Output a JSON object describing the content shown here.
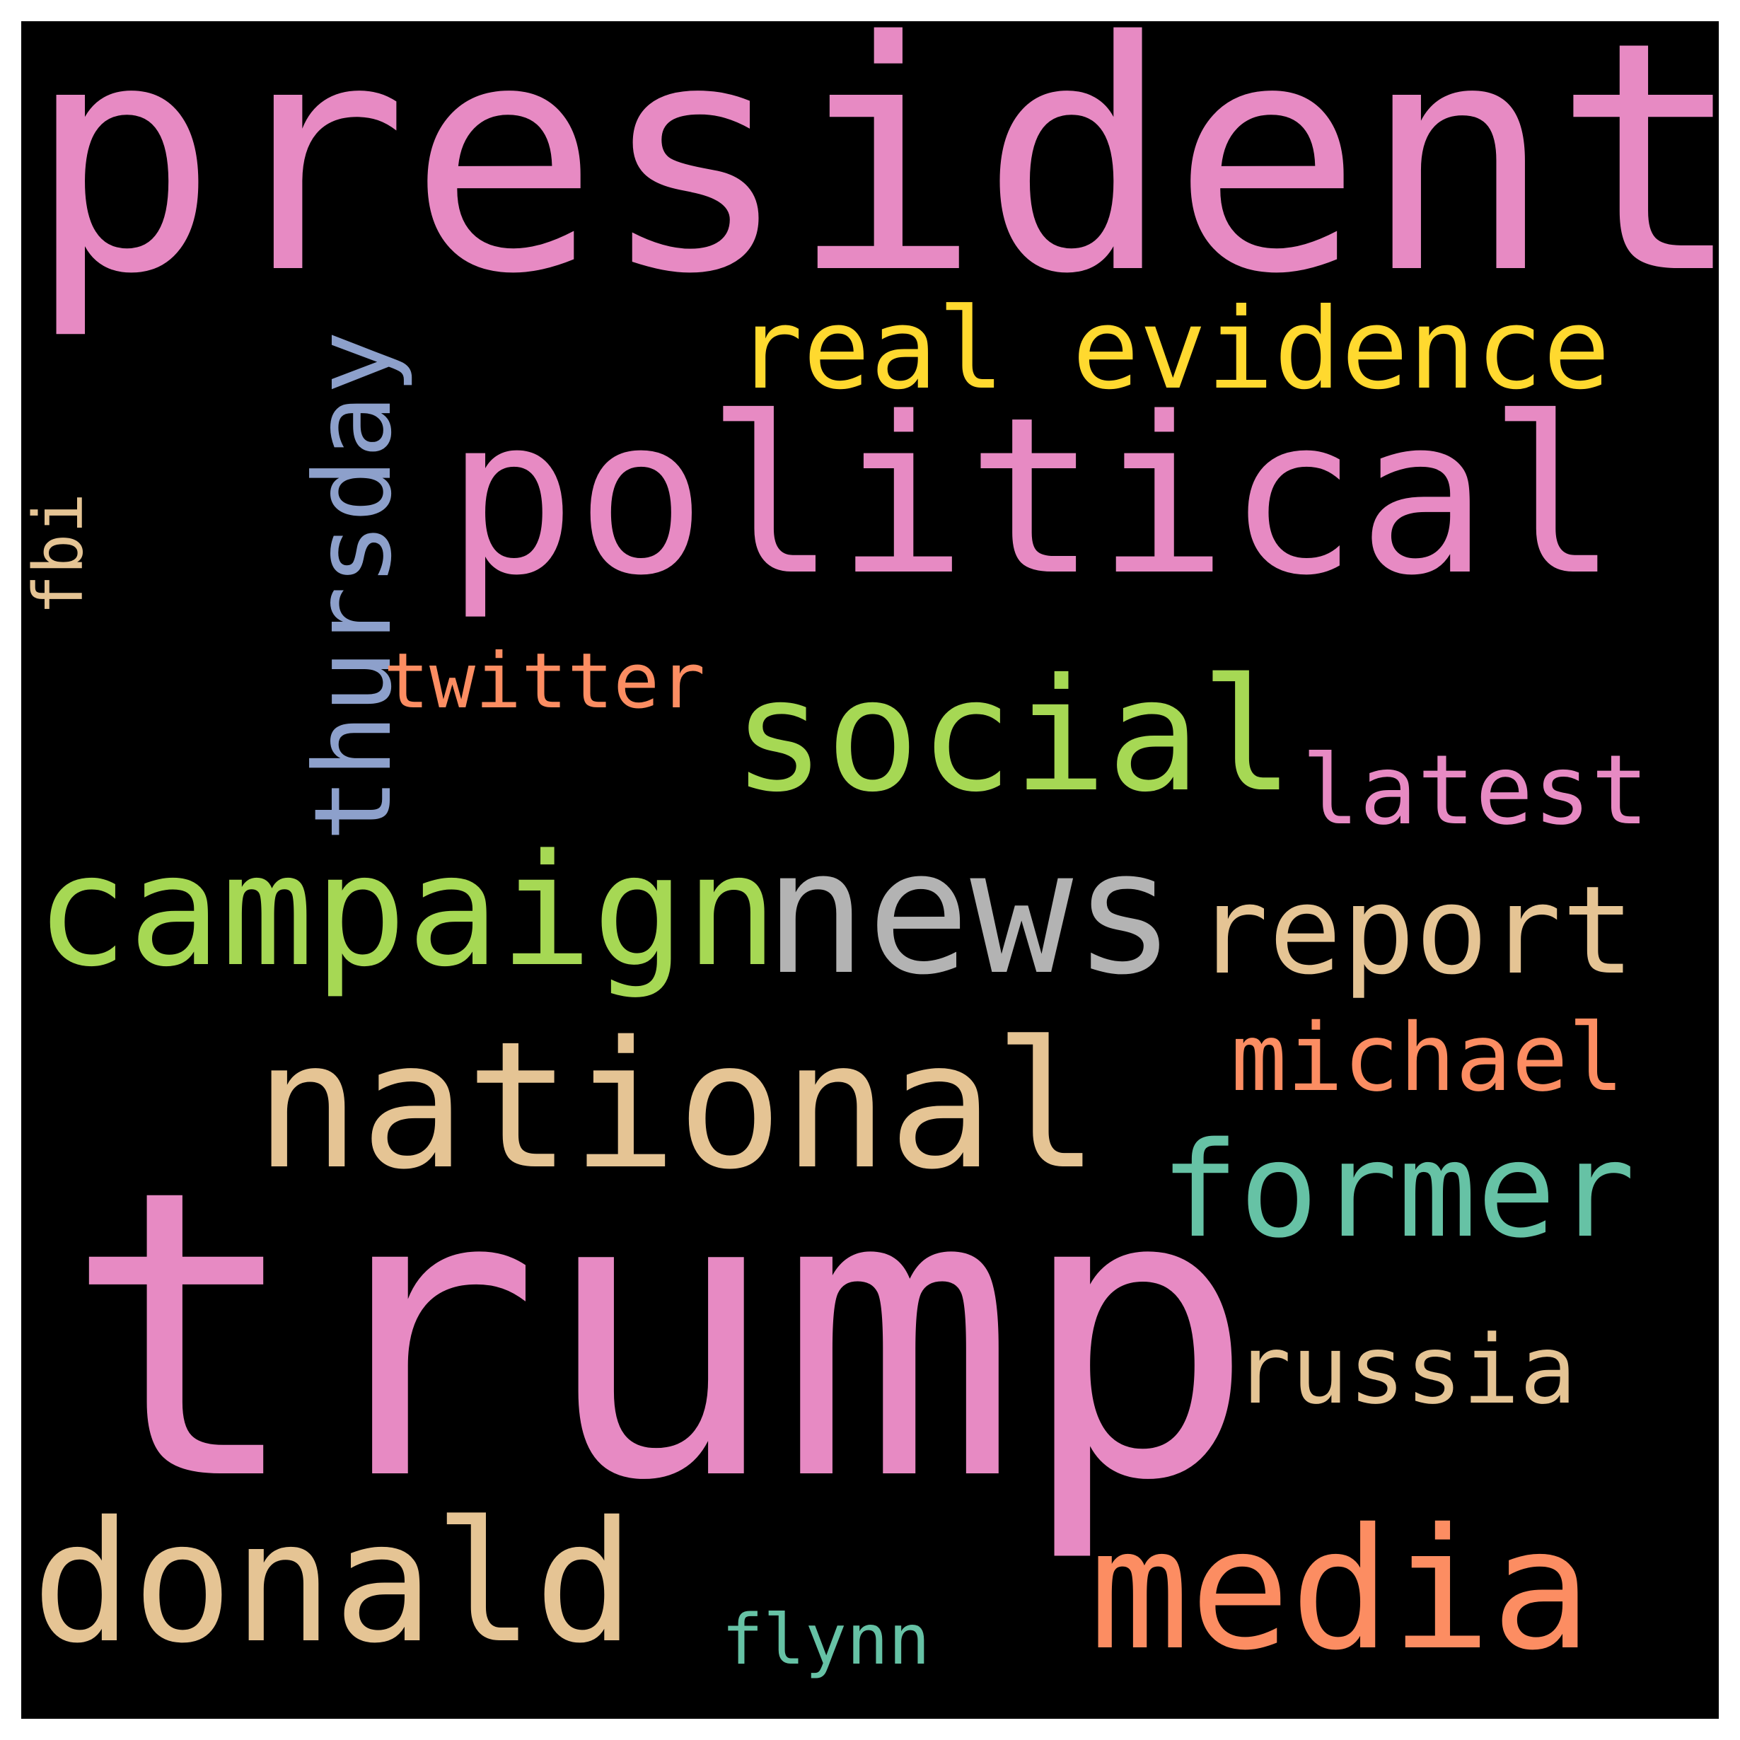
{
  "words": [
    {
      "key": "president",
      "text": "president",
      "color": "#e78ac3"
    },
    {
      "key": "real_evidence",
      "text": "real evidence",
      "color": "#ffd92f"
    },
    {
      "key": "thursday",
      "text": "thursday",
      "color": "#8da0cb"
    },
    {
      "key": "political",
      "text": "political",
      "color": "#e78ac3"
    },
    {
      "key": "fbi",
      "text": "fbi",
      "color": "#e5c494"
    },
    {
      "key": "twitter",
      "text": "twitter",
      "color": "#fc8d62"
    },
    {
      "key": "social",
      "text": "social",
      "color": "#a6d854"
    },
    {
      "key": "latest",
      "text": "latest",
      "color": "#e78ac3"
    },
    {
      "key": "campaign",
      "text": "campaign",
      "color": "#a6d854"
    },
    {
      "key": "news",
      "text": "news",
      "color": "#b3b3b3"
    },
    {
      "key": "report",
      "text": "report",
      "color": "#e5c494"
    },
    {
      "key": "michael",
      "text": "michael",
      "color": "#fc8d62"
    },
    {
      "key": "national",
      "text": "national",
      "color": "#e5c494"
    },
    {
      "key": "former",
      "text": "former",
      "color": "#66c2a5"
    },
    {
      "key": "trump",
      "text": "trump",
      "color": "#e78ac3"
    },
    {
      "key": "russia",
      "text": "russia",
      "color": "#e5c494"
    },
    {
      "key": "donald",
      "text": "donald",
      "color": "#e5c494"
    },
    {
      "key": "media",
      "text": "media",
      "color": "#fc8d62"
    },
    {
      "key": "flynn",
      "text": "flynn",
      "color": "#66c2a5"
    }
  ]
}
